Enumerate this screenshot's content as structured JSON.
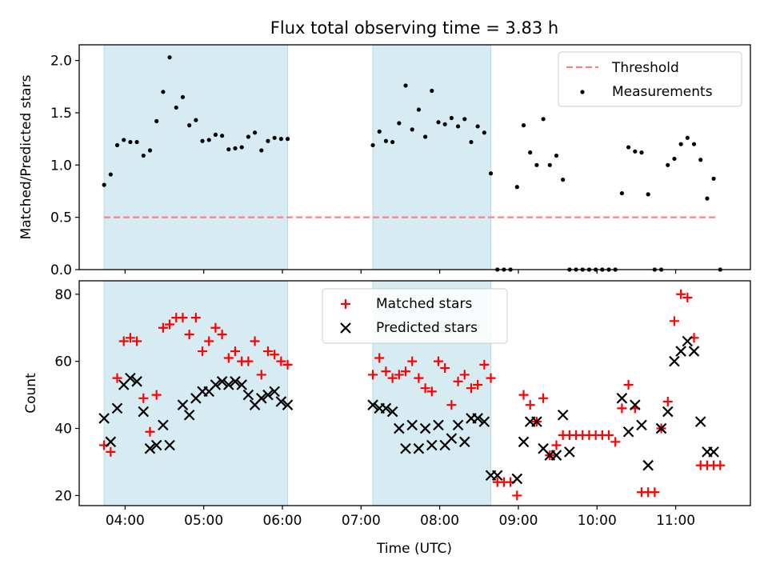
{
  "figure": {
    "title": "Flux total observing time = 3.83 h",
    "xlabel": "Time (UTC)",
    "xticks": [
      "04:00",
      "05:00",
      "06:00",
      "07:00",
      "08:00",
      "09:00",
      "10:00",
      "11:00"
    ],
    "xlim": [
      "03:25",
      "11:57"
    ]
  },
  "chart_data": [
    {
      "type": "scatter",
      "ylabel": "Matched/Predicted stars",
      "ylim": [
        0.0,
        2.15
      ],
      "yticks": [
        "0.0",
        "0.5",
        "1.0",
        "1.5",
        "2.0"
      ],
      "legend_position": "top-right",
      "shaded_periods": [
        {
          "start": "03:44",
          "end": "06:04"
        },
        {
          "start": "07:09",
          "end": "08:39"
        }
      ],
      "threshold": {
        "name": "Threshold",
        "y": 0.5,
        "x_start": "03:44",
        "x_end": "11:32",
        "color": "#ff8080"
      },
      "series": [
        {
          "name": "Measurements",
          "color": "#000000",
          "x": [
            "03:44",
            "03:49",
            "03:54",
            "03:59",
            "04:04",
            "04:09",
            "04:14",
            "04:19",
            "04:24",
            "04:29",
            "04:34",
            "04:39",
            "04:44",
            "04:49",
            "04:54",
            "04:59",
            "05:04",
            "05:09",
            "05:14",
            "05:19",
            "05:24",
            "05:29",
            "05:34",
            "05:39",
            "05:44",
            "05:49",
            "05:54",
            "05:59",
            "06:04",
            "07:09",
            "07:14",
            "07:19",
            "07:24",
            "07:29",
            "07:34",
            "07:39",
            "07:44",
            "07:49",
            "07:54",
            "07:59",
            "08:04",
            "08:09",
            "08:14",
            "08:19",
            "08:24",
            "08:29",
            "08:34",
            "08:39",
            "08:44",
            "08:49",
            "08:54",
            "08:59",
            "09:04",
            "09:09",
            "09:14",
            "09:19",
            "09:24",
            "09:29",
            "09:34",
            "09:39",
            "09:44",
            "09:49",
            "09:54",
            "09:59",
            "10:04",
            "10:09",
            "10:14",
            "10:19",
            "10:24",
            "10:29",
            "10:34",
            "10:39",
            "10:44",
            "10:49",
            "10:54",
            "10:59",
            "11:04",
            "11:09",
            "11:14",
            "11:19",
            "11:24",
            "11:29",
            "11:34"
          ],
          "y": [
            0.81,
            0.91,
            1.19,
            1.24,
            1.22,
            1.22,
            1.09,
            1.14,
            1.42,
            1.7,
            2.03,
            1.55,
            1.65,
            1.38,
            1.43,
            1.23,
            1.24,
            1.29,
            1.28,
            1.15,
            1.16,
            1.17,
            1.27,
            1.31,
            1.14,
            1.23,
            1.26,
            1.25,
            1.25,
            1.19,
            1.32,
            1.23,
            1.22,
            1.4,
            1.76,
            1.34,
            1.53,
            1.27,
            1.71,
            1.41,
            1.39,
            1.45,
            1.37,
            1.44,
            1.22,
            1.37,
            1.31,
            0.92,
            0.0,
            0.0,
            0.0,
            0.79,
            1.38,
            1.12,
            1.0,
            1.44,
            1.0,
            1.09,
            0.86,
            0.0,
            0.0,
            0.0,
            0.0,
            0.0,
            0.0,
            0.0,
            0.0,
            0.73,
            1.17,
            1.13,
            1.12,
            0.72,
            0.0,
            0.0,
            1.0,
            1.06,
            1.2,
            1.26,
            1.2,
            1.05,
            0.68,
            0.87,
            0.0
          ]
        }
      ]
    },
    {
      "type": "scatter",
      "ylabel": "Count",
      "ylim": [
        17,
        84
      ],
      "yticks": [
        "20",
        "40",
        "60",
        "80"
      ],
      "legend_position": "top-center",
      "shaded_periods": [
        {
          "start": "03:44",
          "end": "06:04"
        },
        {
          "start": "07:09",
          "end": "08:39"
        }
      ],
      "series": [
        {
          "name": "Matched stars",
          "marker": "plus",
          "color": "#ff0000",
          "x": [
            "03:44",
            "03:49",
            "03:54",
            "03:59",
            "04:04",
            "04:09",
            "04:14",
            "04:19",
            "04:24",
            "04:29",
            "04:34",
            "04:39",
            "04:44",
            "04:49",
            "04:54",
            "04:59",
            "05:04",
            "05:09",
            "05:14",
            "05:19",
            "05:24",
            "05:29",
            "05:34",
            "05:39",
            "05:44",
            "05:49",
            "05:54",
            "05:59",
            "06:04",
            "07:09",
            "07:14",
            "07:19",
            "07:24",
            "07:29",
            "07:34",
            "07:39",
            "07:44",
            "07:49",
            "07:54",
            "07:59",
            "08:04",
            "08:09",
            "08:14",
            "08:19",
            "08:24",
            "08:29",
            "08:34",
            "08:39",
            "08:44",
            "08:49",
            "08:54",
            "08:59",
            "09:04",
            "09:09",
            "09:14",
            "09:19",
            "09:24",
            "09:29",
            "09:34",
            "09:39",
            "09:44",
            "09:49",
            "09:54",
            "09:59",
            "10:04",
            "10:09",
            "10:14",
            "10:19",
            "10:24",
            "10:29",
            "10:34",
            "10:39",
            "10:44",
            "10:49",
            "10:54",
            "10:59",
            "11:04",
            "11:09",
            "11:14",
            "11:19",
            "11:24",
            "11:29",
            "11:34"
          ],
          "y": [
            35,
            33,
            55,
            66,
            67,
            66,
            49,
            39,
            50,
            70,
            71,
            73,
            73,
            68,
            73,
            63,
            66,
            70,
            68,
            61,
            63,
            60,
            60,
            66,
            56,
            63,
            62,
            60,
            59,
            56,
            61,
            57,
            55,
            56,
            57,
            60,
            55,
            52,
            51,
            60,
            58,
            47,
            54,
            56,
            52,
            53,
            59,
            55,
            24,
            24,
            24,
            20,
            50,
            47,
            42,
            49,
            32,
            35,
            38,
            38,
            38,
            38,
            38,
            38,
            38,
            38,
            36,
            46,
            53,
            46,
            21,
            21,
            21,
            40,
            48,
            72,
            80,
            79,
            67,
            29,
            29,
            29,
            29
          ]
        },
        {
          "name": "Predicted stars",
          "marker": "x",
          "color": "#000000",
          "x": [
            "03:44",
            "03:49",
            "03:54",
            "03:59",
            "04:04",
            "04:09",
            "04:14",
            "04:19",
            "04:24",
            "04:29",
            "04:34",
            "04:44",
            "04:49",
            "04:54",
            "04:59",
            "05:04",
            "05:09",
            "05:14",
            "05:19",
            "05:24",
            "05:29",
            "05:34",
            "05:39",
            "05:44",
            "05:49",
            "05:54",
            "05:59",
            "06:04",
            "07:09",
            "07:14",
            "07:19",
            "07:24",
            "07:29",
            "07:34",
            "07:39",
            "07:44",
            "07:49",
            "07:54",
            "07:59",
            "08:04",
            "08:09",
            "08:14",
            "08:19",
            "08:24",
            "08:29",
            "08:34",
            "08:39",
            "08:44",
            "08:59",
            "09:04",
            "09:09",
            "09:14",
            "09:19",
            "09:24",
            "09:29",
            "09:34",
            "09:39",
            "10:19",
            "10:24",
            "10:29",
            "10:34",
            "10:39",
            "10:49",
            "10:54",
            "10:59",
            "11:04",
            "11:09",
            "11:14",
            "11:19",
            "11:24",
            "11:29"
          ],
          "y": [
            43,
            36,
            46,
            53,
            55,
            54,
            45,
            34,
            35,
            41,
            35,
            47,
            44,
            49,
            51,
            51,
            53,
            54,
            53,
            54,
            53,
            50,
            47,
            49,
            50,
            51,
            48,
            47,
            47,
            46,
            46,
            45,
            40,
            34,
            41,
            34,
            40,
            35,
            41,
            35,
            37,
            41,
            36,
            43,
            43,
            42,
            26,
            26,
            25,
            36,
            42,
            42,
            34,
            32,
            32,
            44,
            33,
            49,
            39,
            47,
            41,
            29,
            40,
            45,
            60,
            63,
            66,
            63,
            42,
            33,
            33
          ]
        }
      ]
    }
  ]
}
